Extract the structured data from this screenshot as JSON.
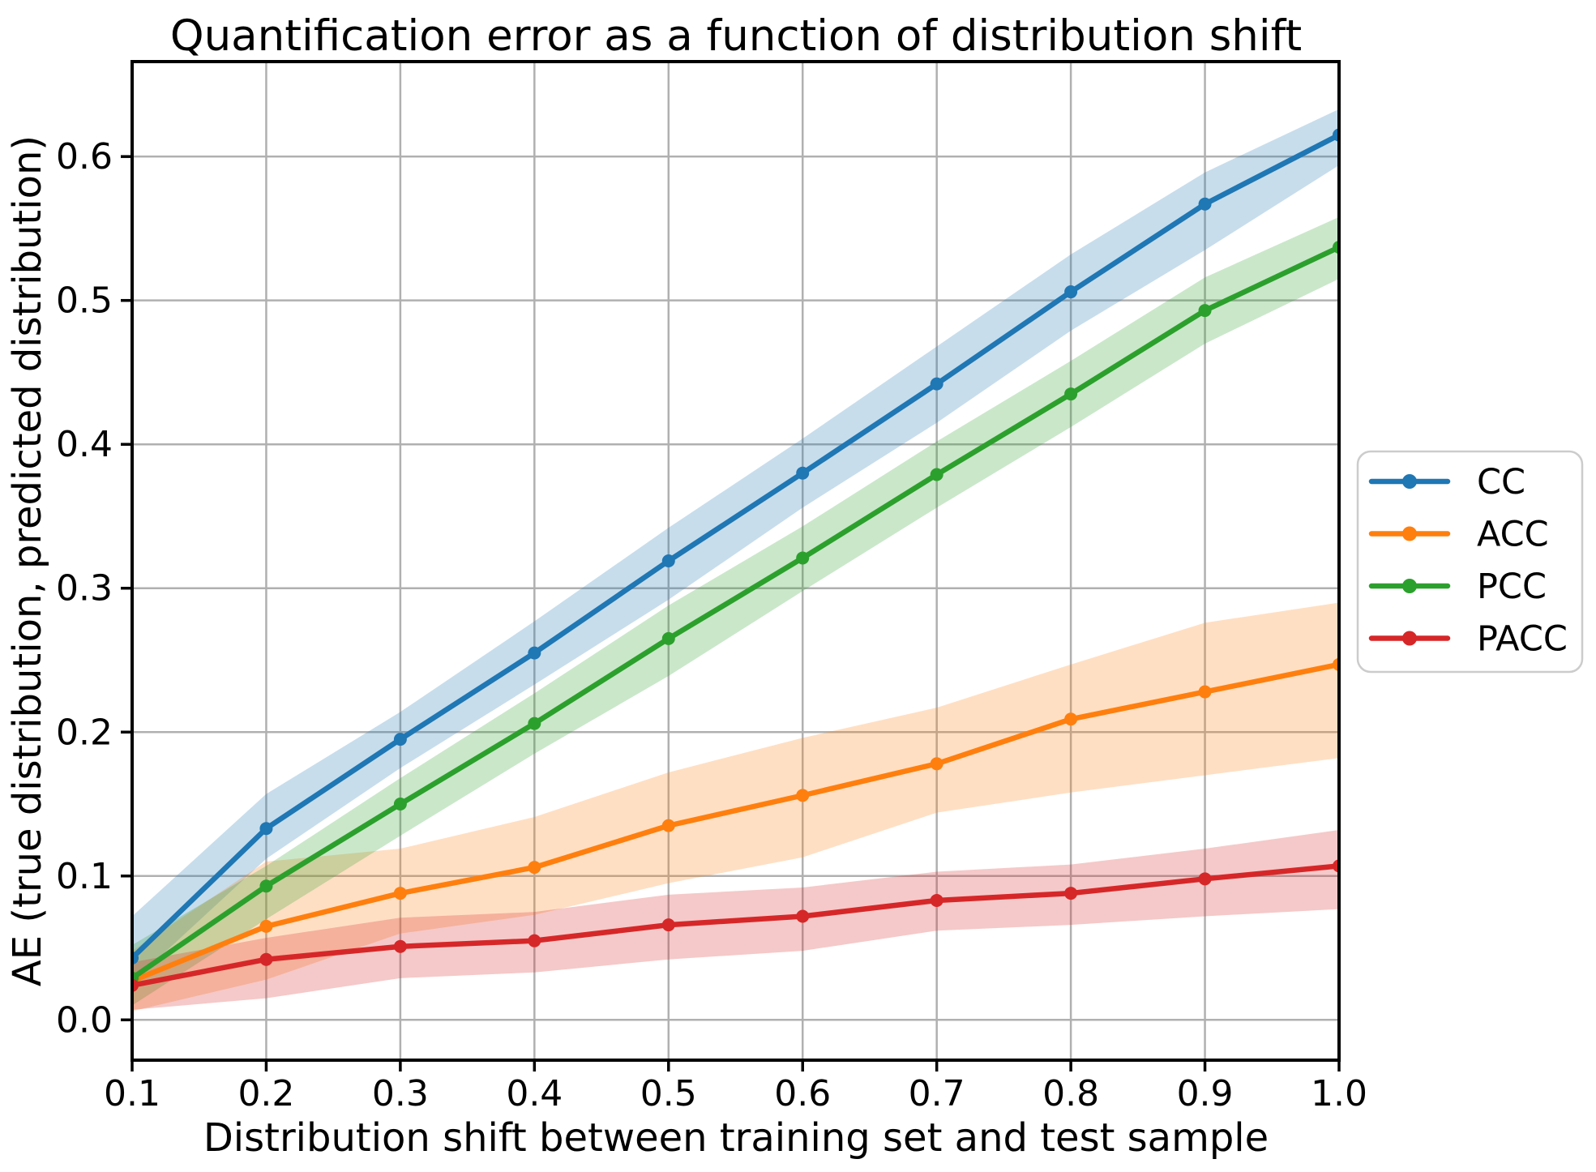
{
  "chart_data": {
    "type": "line",
    "title": "Quantification error as a function of distribution shift",
    "xlabel": "Distribution shift between training set and test sample",
    "ylabel": "AE (true distribution, predicted distribution)",
    "x": [
      0.1,
      0.2,
      0.3,
      0.4,
      0.5,
      0.6,
      0.7,
      0.8,
      0.9,
      1.0
    ],
    "x_tick_labels": [
      "0.1",
      "0.2",
      "0.3",
      "0.4",
      "0.5",
      "0.6",
      "0.7",
      "0.8",
      "0.9",
      "1.0"
    ],
    "y_ticks": [
      0.0,
      0.1,
      0.2,
      0.3,
      0.4,
      0.5,
      0.6
    ],
    "y_tick_labels": [
      "0.0",
      "0.1",
      "0.2",
      "0.3",
      "0.4",
      "0.5",
      "0.6"
    ],
    "xlim": [
      0.1,
      1.0
    ],
    "ylim": [
      -0.028,
      0.666
    ],
    "grid": true,
    "grid_color": "#b0b0b0",
    "band_alpha": 0.25,
    "legend_position": "outside-right",
    "series": [
      {
        "name": "CC",
        "color": "#1f77b4",
        "values": [
          0.043,
          0.133,
          0.195,
          0.255,
          0.319,
          0.38,
          0.442,
          0.506,
          0.567,
          0.615
        ],
        "band_upper": [
          0.072,
          0.157,
          0.214,
          0.277,
          0.342,
          0.404,
          0.468,
          0.532,
          0.589,
          0.633
        ],
        "band_lower": [
          0.026,
          0.112,
          0.175,
          0.233,
          0.292,
          0.356,
          0.415,
          0.479,
          0.535,
          0.594
        ]
      },
      {
        "name": "ACC",
        "color": "#ff7f0e",
        "values": [
          0.027,
          0.065,
          0.088,
          0.106,
          0.135,
          0.156,
          0.178,
          0.209,
          0.228,
          0.247
        ],
        "band_upper": [
          0.048,
          0.11,
          0.119,
          0.141,
          0.172,
          0.196,
          0.217,
          0.247,
          0.276,
          0.29
        ],
        "band_lower": [
          0.006,
          0.028,
          0.06,
          0.073,
          0.095,
          0.113,
          0.144,
          0.158,
          0.17,
          0.182
        ]
      },
      {
        "name": "PCC",
        "color": "#2ca02c",
        "values": [
          0.029,
          0.093,
          0.15,
          0.206,
          0.265,
          0.321,
          0.379,
          0.435,
          0.493,
          0.537
        ],
        "band_upper": [
          0.052,
          0.107,
          0.168,
          0.227,
          0.288,
          0.343,
          0.402,
          0.458,
          0.516,
          0.558
        ],
        "band_lower": [
          0.01,
          0.07,
          0.128,
          0.185,
          0.239,
          0.298,
          0.356,
          0.412,
          0.47,
          0.515
        ]
      },
      {
        "name": "PACC",
        "color": "#d62728",
        "values": [
          0.024,
          0.042,
          0.051,
          0.055,
          0.066,
          0.072,
          0.083,
          0.088,
          0.098,
          0.107
        ],
        "band_upper": [
          0.04,
          0.057,
          0.071,
          0.075,
          0.087,
          0.092,
          0.103,
          0.108,
          0.119,
          0.132
        ],
        "band_lower": [
          0.007,
          0.015,
          0.029,
          0.033,
          0.042,
          0.048,
          0.062,
          0.066,
          0.072,
          0.077
        ]
      }
    ]
  }
}
